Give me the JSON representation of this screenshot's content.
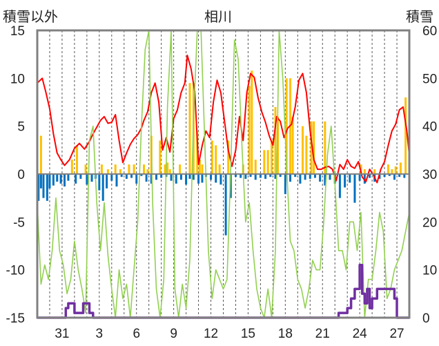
{
  "chart_data": {
    "type": "line",
    "title": "相川",
    "ylabel_left": "積雪以外",
    "ylabel_right": "積雪",
    "ylim_left": [
      -15,
      15
    ],
    "ylim_right": [
      0,
      60
    ],
    "yticks_left": [
      "15",
      "10",
      "5",
      "0",
      "-5",
      "-10",
      "-15"
    ],
    "yticks_right": [
      "60",
      "50",
      "40",
      "30",
      "20",
      "10",
      "0"
    ],
    "x_ticks": [
      "31",
      "3",
      "6",
      "9",
      "12",
      "15",
      "18",
      "21",
      "24",
      "27"
    ],
    "x_tick_days": [
      2,
      5,
      8,
      11,
      14,
      17,
      20,
      23,
      26,
      29
    ],
    "x_range_days": [
      0,
      30
    ],
    "grid": true,
    "colors": {
      "temperature": "#ff0000",
      "precipitation": "#ffc000",
      "temp_change": "#0070c0",
      "sunshine": "#92d050",
      "snow_depth": "#7030a0",
      "frame": "#808080"
    },
    "series": [
      {
        "key": "temperature",
        "axis": "left",
        "x": [
          0.0,
          0.4,
          0.7,
          1.0,
          1.3,
          1.6,
          1.9,
          2.2,
          2.6,
          3.0,
          3.4,
          3.8,
          4.2,
          4.5,
          4.8,
          5.1,
          5.4,
          5.7,
          6.0,
          6.3,
          6.6,
          6.9,
          7.2,
          7.5,
          7.8,
          8.1,
          8.4,
          8.6,
          8.9,
          9.2,
          9.5,
          9.8,
          10.1,
          10.4,
          10.7,
          11.0,
          11.3,
          11.6,
          11.9,
          12.1,
          12.4,
          12.7,
          13.0,
          13.3,
          13.6,
          13.9,
          14.2,
          14.5,
          14.8,
          15.1,
          15.4,
          15.7,
          16.0,
          16.3,
          16.6,
          16.9,
          17.2,
          17.5,
          17.8,
          18.1,
          18.4,
          18.7,
          19.0,
          19.3,
          19.6,
          19.9,
          20.2,
          20.5,
          20.8,
          21.1,
          21.4,
          21.7,
          22.0,
          22.3,
          22.6,
          22.9,
          23.2,
          23.5,
          23.8,
          24.1,
          24.4,
          24.7,
          25.0,
          25.3,
          25.6,
          25.9,
          26.2,
          26.5,
          26.8,
          27.1,
          27.4,
          27.7,
          28.0,
          28.3,
          28.6,
          28.9,
          29.2,
          29.5,
          29.8,
          30.0
        ],
        "y": [
          9.5,
          10,
          8.5,
          6.8,
          4.2,
          2.2,
          1.5,
          0.9,
          1.5,
          2.7,
          3.2,
          2.6,
          3.4,
          4.2,
          4.9,
          5.6,
          6.0,
          5.3,
          5.4,
          6.2,
          3.5,
          1.2,
          2.2,
          3.1,
          3.7,
          4.1,
          4.8,
          5.6,
          6.5,
          8.5,
          9.5,
          7.5,
          2.5,
          3.8,
          2.3,
          5.8,
          6.7,
          8.5,
          9.5,
          12.4,
          11.0,
          8.6,
          1.0,
          3.0,
          4.5,
          3.8,
          7.5,
          9.8,
          8.5,
          5.5,
          2.5,
          0.8,
          2.5,
          6.0,
          3.5,
          8.5,
          10.5,
          10.1,
          8.0,
          6.5,
          5.4,
          4.0,
          3.0,
          6.0,
          5.5,
          3.8,
          4.8,
          5.2,
          7.0,
          9.8,
          10.5,
          8.5,
          4.5,
          1.5,
          0.5,
          0.5,
          0.7,
          0.8,
          0.5,
          -0.7,
          1.0,
          0.5,
          1.5,
          0.8,
          0.6,
          1.3,
          -0.3,
          -0.8,
          0.5,
          -0.1,
          -0.9,
          0.5,
          1.3,
          3.0,
          4.5,
          5.2,
          6.7,
          7.0,
          4.5,
          2.0
        ]
      },
      {
        "key": "precipitation",
        "axis": "left",
        "style": "bar",
        "x": [
          0.3,
          2.8,
          3.2,
          3.9,
          5.2,
          5.7,
          6.3,
          6.7,
          7.4,
          7.8,
          8.6,
          8.9,
          9.2,
          9.9,
          10.3,
          10.5,
          10.7,
          11.5,
          12.3,
          12.6,
          12.9,
          13.1,
          13.3,
          14.1,
          14.4,
          14.7,
          15.4,
          16.6,
          17.1,
          17.3,
          17.6,
          18.3,
          18.6,
          18.9,
          19.2,
          19.4,
          20.1,
          20.4,
          20.6,
          21.4,
          21.7,
          22.1,
          22.3,
          23.2,
          26.1,
          26.4,
          27.2,
          28.3,
          28.6,
          28.9,
          29.3,
          29.7
        ],
        "y": [
          4,
          1.5,
          3,
          1,
          1,
          0.5,
          1,
          0.5,
          1,
          1,
          1,
          0.5,
          4,
          3.5,
          1,
          1.2,
          0.5,
          1,
          9.5,
          9.5,
          4.5,
          1.5,
          1,
          3.5,
          3,
          1,
          3.5,
          1,
          9.2,
          10.8,
          1.5,
          2.5,
          2.5,
          3.5,
          7,
          6,
          10,
          10,
          6,
          5,
          4,
          5.5,
          5.5,
          5.5,
          1,
          0.5,
          0.5,
          1,
          0.5,
          0.8,
          1.2,
          8
        ]
      },
      {
        "key": "temp_change",
        "axis": "left",
        "style": "bar",
        "x": [
          0.1,
          0.3,
          0.5,
          0.8,
          1.0,
          1.3,
          1.6,
          1.9,
          2.2,
          2.5,
          3.1,
          3.5,
          4.0,
          4.4,
          4.7,
          5.0,
          5.3,
          5.6,
          6.0,
          6.4,
          6.8,
          7.2,
          7.6,
          8.0,
          8.4,
          8.8,
          9.2,
          9.6,
          10.0,
          10.4,
          10.8,
          11.2,
          11.6,
          12.0,
          12.3,
          12.6,
          13.0,
          13.3,
          13.6,
          14.0,
          14.4,
          14.8,
          15.2,
          15.6,
          16.0,
          16.4,
          16.8,
          17.2,
          17.6,
          18.0,
          18.4,
          18.8,
          19.2,
          19.6,
          20.0,
          20.4,
          20.8,
          21.2,
          21.6,
          22.0,
          22.4,
          22.8,
          23.2,
          23.6,
          24.0,
          24.4,
          24.8,
          25.2,
          25.6,
          26.0,
          26.4,
          26.8,
          27.2,
          27.6,
          28.0,
          28.4,
          28.8,
          29.2,
          29.6,
          30.0
        ],
        "y": [
          -2.8,
          -1.5,
          -2.5,
          -2.8,
          -1.5,
          -1.2,
          -0.8,
          -1.0,
          -1.3,
          -0.7,
          -1.0,
          -0.5,
          -1.1,
          -0.8,
          -0.5,
          -1.7,
          -2.8,
          -1.5,
          -0.7,
          -1.3,
          -0.3,
          -0.5,
          -0.4,
          -1.0,
          -0.2,
          -0.8,
          -1.0,
          -0.6,
          -0.4,
          -0.3,
          -0.7,
          -1.0,
          -0.6,
          -1.1,
          -0.5,
          -0.6,
          -1.0,
          -0.9,
          -0.3,
          -0.6,
          -0.9,
          -1.1,
          -6.4,
          -2.5,
          -0.3,
          -0.4,
          -0.5,
          -0.3,
          -0.6,
          -0.4,
          -0.5,
          -0.3,
          -0.5,
          -0.3,
          -2.1,
          -0.8,
          -0.3,
          -1.0,
          -0.6,
          -0.5,
          -0.4,
          -0.8,
          -1.2,
          -0.6,
          -1.0,
          -2.5,
          -1.4,
          -0.9,
          -3.0,
          -0.7,
          -1.0,
          -0.4,
          -0.8,
          -0.5,
          -0.3,
          -0.2,
          -0.6,
          -0.3,
          -0.4,
          -0.8
        ]
      },
      {
        "key": "sunshine",
        "axis": "left",
        "x": [
          0.0,
          0.3,
          0.6,
          0.9,
          1.2,
          1.5,
          1.8,
          2.1,
          2.4,
          2.7,
          3.0,
          3.3,
          3.6,
          3.9,
          4.2,
          4.5,
          4.8,
          5.1,
          5.4,
          5.7,
          6.0,
          6.3,
          6.6,
          6.9,
          7.2,
          7.5,
          7.8,
          8.1,
          8.4,
          8.7,
          9.0,
          9.3,
          9.6,
          9.9,
          10.2,
          10.5,
          10.8,
          11.1,
          11.4,
          11.7,
          12.0,
          12.3,
          12.6,
          12.9,
          13.2,
          13.5,
          13.8,
          14.1,
          14.4,
          14.7,
          15.0,
          15.3,
          15.6,
          15.9,
          16.2,
          16.5,
          16.8,
          17.1,
          17.4,
          17.7,
          18.0,
          18.3,
          18.6,
          18.9,
          19.2,
          19.5,
          19.8,
          20.1,
          20.4,
          20.7,
          21.0,
          21.3,
          21.6,
          21.9,
          22.2,
          22.5,
          22.8,
          23.1,
          23.4,
          23.7,
          24.0,
          24.3,
          24.6,
          24.9,
          25.2,
          25.5,
          25.8,
          26.1,
          26.4,
          26.7,
          27.0,
          27.3,
          27.6,
          27.9,
          28.2,
          28.5,
          28.8,
          29.1,
          29.4,
          29.7,
          30.0
        ],
        "y": [
          -3,
          -11.5,
          -9.5,
          -11,
          -8,
          -2.5,
          -8,
          -9.5,
          -12.5,
          -11,
          -7,
          -10,
          -12,
          -14.5,
          3.5,
          5,
          -3,
          -8,
          -3,
          -8.5,
          -12,
          -15,
          -10,
          -13,
          -11.5,
          -15,
          -10,
          -5,
          5,
          13,
          15,
          -3,
          -12,
          -15,
          -11,
          7,
          15,
          -12,
          -15,
          -11.5,
          -14,
          -9,
          6,
          15,
          15,
          3.5,
          -8,
          -13,
          -10,
          -11,
          -12,
          -11,
          0.7,
          14,
          12,
          3,
          -5,
          -3,
          -8,
          -12,
          -14,
          -15,
          -12,
          -15,
          -8,
          15,
          10,
          1,
          -7,
          -8,
          -11,
          -12,
          -14,
          -12,
          -9,
          -10,
          -10,
          -5,
          2,
          5,
          -1,
          -8,
          -8,
          -10,
          -5,
          -5,
          -8,
          -4,
          -15,
          -11,
          -11,
          -8,
          -4,
          -6,
          -13,
          -12,
          -10,
          -9,
          -8,
          -6,
          -4
        ]
      },
      {
        "key": "snow_depth",
        "axis": "right",
        "style": "step",
        "x": [
          0,
          1.8,
          2.0,
          2.3,
          2.5,
          2.7,
          3.0,
          3.5,
          3.7,
          4.0,
          4.2,
          4.5,
          24.0,
          24.3,
          24.6,
          25.0,
          25.3,
          25.6,
          26.0,
          26.2,
          26.4,
          26.6,
          26.8,
          27.0,
          27.4,
          28.0,
          28.4,
          28.8,
          29.0,
          30.0
        ],
        "y": [
          0,
          0,
          0,
          2,
          3,
          3,
          1,
          1,
          3,
          3,
          1,
          0,
          0,
          1,
          1,
          2,
          4,
          6,
          11,
          5,
          3,
          6,
          2,
          4,
          6,
          6,
          6,
          4,
          0,
          0
        ]
      }
    ]
  }
}
